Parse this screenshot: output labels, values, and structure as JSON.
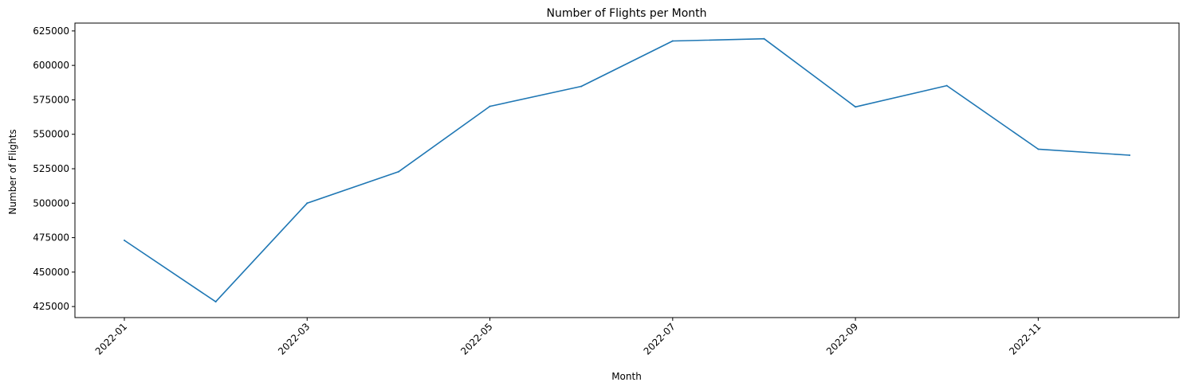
{
  "chart_data": {
    "type": "line",
    "title": "Number of Flights per Month",
    "xlabel": "Month",
    "ylabel": "Number of Flights",
    "x": [
      "2022-01",
      "2022-02",
      "2022-03",
      "2022-04",
      "2022-05",
      "2022-06",
      "2022-07",
      "2022-08",
      "2022-09",
      "2022-10",
      "2022-11",
      "2022-12"
    ],
    "series": [
      {
        "values": [
          473000,
          428500,
          500000,
          522800,
          570300,
          584800,
          617700,
          619300,
          569900,
          585300,
          539200,
          534800
        ]
      }
    ],
    "x_ticks": [
      "2022-01",
      "2022-03",
      "2022-05",
      "2022-07",
      "2022-09",
      "2022-11"
    ],
    "y_ticks": [
      425000,
      450000,
      475000,
      500000,
      525000,
      550000,
      575000,
      600000,
      625000
    ],
    "y_tick_labels": [
      "425000",
      "450000",
      "475000",
      "500000",
      "525000",
      "550000",
      "575000",
      "600000",
      "625000"
    ],
    "ylim": [
      417000,
      630700
    ],
    "grid": false,
    "colors": {
      "line": "#1f77b4"
    }
  }
}
